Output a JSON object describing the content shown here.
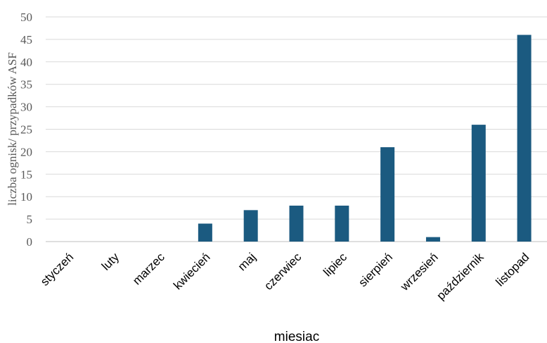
{
  "chart_data": {
    "type": "bar",
    "categories": [
      "styczeń",
      "luty",
      "marzec",
      "kwiecień",
      "maj",
      "czerwiec",
      "lipiec",
      "sierpień",
      "wrzesień",
      "październik",
      "listopad"
    ],
    "values": [
      0,
      0,
      0,
      4,
      7,
      8,
      8,
      21,
      1,
      26,
      46
    ],
    "xlabel": "miesiac",
    "ylabel": "liczba ognisk/ przypadków ASF",
    "ylim": [
      0,
      50
    ],
    "yticks": [
      0,
      5,
      10,
      15,
      20,
      25,
      30,
      35,
      40,
      45,
      50
    ],
    "grid": true,
    "bar_color": "#1b5a80"
  }
}
